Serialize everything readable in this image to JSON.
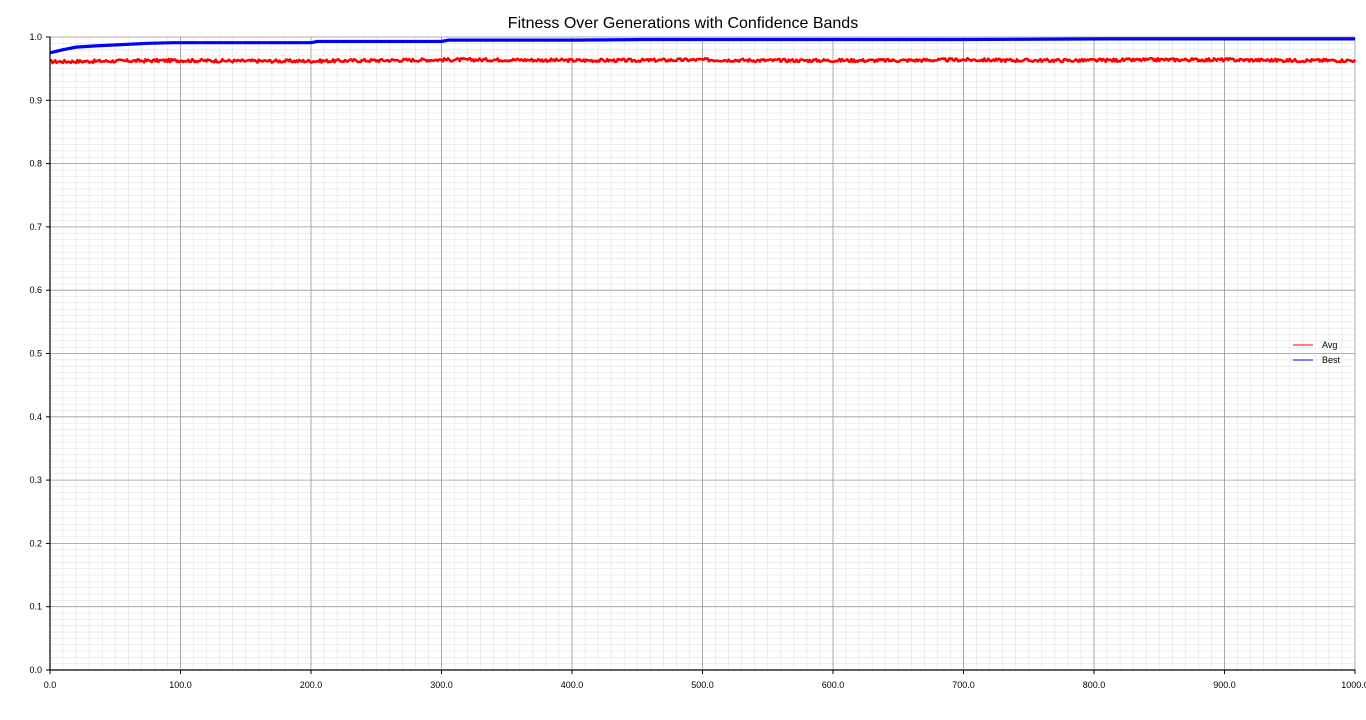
{
  "chart_data": {
    "type": "line",
    "title": "Fitness Over Generations with Confidence Bands",
    "xlabel": "",
    "ylabel": "",
    "xlim": [
      0,
      1000
    ],
    "ylim": [
      0,
      1.0
    ],
    "x_ticks": [
      "0.0",
      "100.0",
      "200.0",
      "300.0",
      "400.0",
      "500.0",
      "600.0",
      "700.0",
      "800.0",
      "900.0",
      "1000.0"
    ],
    "y_ticks": [
      "0.0",
      "0.1",
      "0.2",
      "0.3",
      "0.4",
      "0.5",
      "0.6",
      "0.7",
      "0.8",
      "0.9",
      "1.0"
    ],
    "grid": true,
    "legend_position": "center-right",
    "series": [
      {
        "name": "Avg",
        "color": "#ff0000",
        "x": [
          0,
          50,
          100,
          150,
          200,
          250,
          300,
          350,
          400,
          450,
          500,
          550,
          600,
          650,
          700,
          750,
          800,
          850,
          900,
          950,
          1000
        ],
        "values": [
          0.961,
          0.962,
          0.963,
          0.962,
          0.962,
          0.963,
          0.964,
          0.964,
          0.963,
          0.963,
          0.964,
          0.963,
          0.963,
          0.963,
          0.964,
          0.963,
          0.963,
          0.964,
          0.964,
          0.963,
          0.963
        ]
      },
      {
        "name": "Best",
        "color": "#0000ff",
        "x": [
          0,
          10,
          20,
          35,
          55,
          75,
          95,
          150,
          200,
          205,
          250,
          300,
          305,
          400,
          455,
          600,
          700,
          810,
          900,
          1000
        ],
        "values": [
          0.975,
          0.98,
          0.984,
          0.986,
          0.988,
          0.99,
          0.991,
          0.991,
          0.991,
          0.993,
          0.993,
          0.993,
          0.995,
          0.995,
          0.996,
          0.996,
          0.996,
          0.997,
          0.997,
          0.997
        ]
      }
    ]
  }
}
